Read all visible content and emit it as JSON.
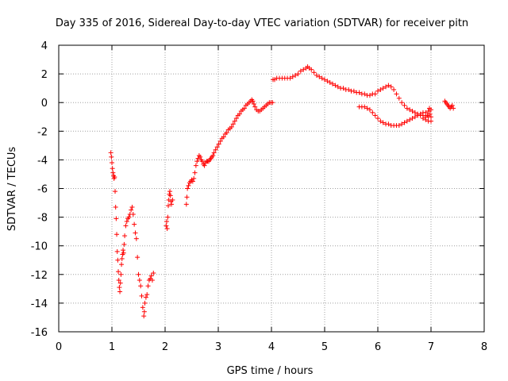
{
  "chart_data": {
    "type": "scatter",
    "title": "Day 335 of 2016, Sidereal Day-to-day VTEC variation (SDTVAR) for receiver pitn",
    "xlabel": "GPS time / hours",
    "ylabel": "SDTVAR / TECUs",
    "xlim": [
      0,
      8
    ],
    "ylim": [
      -16,
      4
    ],
    "xticks": [
      0,
      1,
      2,
      3,
      4,
      5,
      6,
      7,
      8
    ],
    "yticks": [
      -16,
      -14,
      -12,
      -10,
      -8,
      -6,
      -4,
      -2,
      0,
      2,
      4
    ],
    "grid": true,
    "marker": "+",
    "series": [
      {
        "name": "SDTVAR",
        "color": "#ff0000",
        "points": [
          [
            0.98,
            -3.5
          ],
          [
            0.99,
            -3.8
          ],
          [
            1.0,
            -4.2
          ],
          [
            1.01,
            -4.6
          ],
          [
            1.02,
            -4.9
          ],
          [
            1.03,
            -5.1
          ],
          [
            1.04,
            -5.3
          ],
          [
            1.05,
            -5.2
          ],
          [
            1.06,
            -6.2
          ],
          [
            1.07,
            -7.3
          ],
          [
            1.08,
            -8.1
          ],
          [
            1.09,
            -9.2
          ],
          [
            1.1,
            -10.4
          ],
          [
            1.11,
            -11.0
          ],
          [
            1.12,
            -11.8
          ],
          [
            1.13,
            -12.4
          ],
          [
            1.14,
            -12.9
          ],
          [
            1.15,
            -13.2
          ],
          [
            1.16,
            -12.6
          ],
          [
            1.17,
            -12.0
          ],
          [
            1.18,
            -11.3
          ],
          [
            1.19,
            -10.9
          ],
          [
            1.2,
            -10.6
          ],
          [
            1.21,
            -10.3
          ],
          [
            1.22,
            -10.5
          ],
          [
            1.23,
            -9.9
          ],
          [
            1.24,
            -9.3
          ],
          [
            1.26,
            -8.6
          ],
          [
            1.28,
            -8.3
          ],
          [
            1.3,
            -8.1
          ],
          [
            1.32,
            -8.0
          ],
          [
            1.34,
            -7.8
          ],
          [
            1.36,
            -7.5
          ],
          [
            1.38,
            -7.3
          ],
          [
            1.4,
            -7.8
          ],
          [
            1.42,
            -8.5
          ],
          [
            1.44,
            -9.1
          ],
          [
            1.46,
            -9.5
          ],
          [
            1.48,
            -10.8
          ],
          [
            1.5,
            -12.0
          ],
          [
            1.52,
            -12.4
          ],
          [
            1.54,
            -12.8
          ],
          [
            1.56,
            -13.5
          ],
          [
            1.58,
            -14.3
          ],
          [
            1.6,
            -14.9
          ],
          [
            1.61,
            -14.6
          ],
          [
            1.62,
            -14.0
          ],
          [
            1.64,
            -13.6
          ],
          [
            1.66,
            -13.4
          ],
          [
            1.68,
            -12.8
          ],
          [
            1.7,
            -12.4
          ],
          [
            1.72,
            -12.3
          ],
          [
            1.74,
            -12.1
          ],
          [
            1.76,
            -12.4
          ],
          [
            1.78,
            -11.9
          ],
          [
            2.02,
            -8.6
          ],
          [
            2.03,
            -8.3
          ],
          [
            2.04,
            -8.8
          ],
          [
            2.05,
            -8.0
          ],
          [
            2.06,
            -7.2
          ],
          [
            2.07,
            -6.8
          ],
          [
            2.08,
            -6.4
          ],
          [
            2.09,
            -6.2
          ],
          [
            2.1,
            -6.5
          ],
          [
            2.11,
            -6.9
          ],
          [
            2.12,
            -7.1
          ],
          [
            2.14,
            -6.8
          ],
          [
            2.4,
            -7.1
          ],
          [
            2.41,
            -6.6
          ],
          [
            2.42,
            -6.0
          ],
          [
            2.44,
            -5.8
          ],
          [
            2.46,
            -5.6
          ],
          [
            2.48,
            -5.5
          ],
          [
            2.5,
            -5.4
          ],
          [
            2.52,
            -5.5
          ],
          [
            2.54,
            -5.3
          ],
          [
            2.56,
            -4.9
          ],
          [
            2.58,
            -4.4
          ],
          [
            2.6,
            -4.1
          ],
          [
            2.62,
            -3.9
          ],
          [
            2.64,
            -3.7
          ],
          [
            2.66,
            -3.8
          ],
          [
            2.68,
            -4.0
          ],
          [
            2.7,
            -4.1
          ],
          [
            2.72,
            -4.3
          ],
          [
            2.74,
            -4.4
          ],
          [
            2.76,
            -4.2
          ],
          [
            2.78,
            -4.1
          ],
          [
            2.8,
            -4.1
          ],
          [
            2.82,
            -4.1
          ],
          [
            2.84,
            -4.0
          ],
          [
            2.86,
            -3.9
          ],
          [
            2.88,
            -3.8
          ],
          [
            2.9,
            -3.7
          ],
          [
            2.92,
            -3.5
          ],
          [
            2.95,
            -3.3
          ],
          [
            2.98,
            -3.1
          ],
          [
            3.01,
            -2.9
          ],
          [
            3.04,
            -2.7
          ],
          [
            3.07,
            -2.5
          ],
          [
            3.1,
            -2.4
          ],
          [
            3.13,
            -2.2
          ],
          [
            3.16,
            -2.1
          ],
          [
            3.19,
            -1.9
          ],
          [
            3.22,
            -1.8
          ],
          [
            3.25,
            -1.7
          ],
          [
            3.28,
            -1.5
          ],
          [
            3.31,
            -1.3
          ],
          [
            3.34,
            -1.1
          ],
          [
            3.37,
            -0.9
          ],
          [
            3.4,
            -0.8
          ],
          [
            3.43,
            -0.6
          ],
          [
            3.46,
            -0.5
          ],
          [
            3.49,
            -0.4
          ],
          [
            3.52,
            -0.2
          ],
          [
            3.55,
            -0.1
          ],
          [
            3.58,
            0.0
          ],
          [
            3.61,
            0.1
          ],
          [
            3.63,
            0.2
          ],
          [
            3.65,
            0.1
          ],
          [
            3.67,
            -0.1
          ],
          [
            3.69,
            -0.3
          ],
          [
            3.72,
            -0.5
          ],
          [
            3.75,
            -0.6
          ],
          [
            3.78,
            -0.6
          ],
          [
            3.81,
            -0.5
          ],
          [
            3.84,
            -0.4
          ],
          [
            3.87,
            -0.3
          ],
          [
            3.9,
            -0.2
          ],
          [
            3.93,
            -0.1
          ],
          [
            3.96,
            0.0
          ],
          [
            3.99,
            0.0
          ],
          [
            4.02,
            0.0
          ],
          [
            4.03,
            1.6
          ],
          [
            4.06,
            1.6
          ],
          [
            4.1,
            1.7
          ],
          [
            4.15,
            1.7
          ],
          [
            4.2,
            1.7
          ],
          [
            4.25,
            1.7
          ],
          [
            4.3,
            1.7
          ],
          [
            4.35,
            1.7
          ],
          [
            4.4,
            1.8
          ],
          [
            4.45,
            1.9
          ],
          [
            4.5,
            2.0
          ],
          [
            4.55,
            2.2
          ],
          [
            4.6,
            2.3
          ],
          [
            4.65,
            2.4
          ],
          [
            4.68,
            2.5
          ],
          [
            4.71,
            2.4
          ],
          [
            4.75,
            2.3
          ],
          [
            4.8,
            2.1
          ],
          [
            4.85,
            1.9
          ],
          [
            4.9,
            1.8
          ],
          [
            4.95,
            1.7
          ],
          [
            5.0,
            1.6
          ],
          [
            5.05,
            1.5
          ],
          [
            5.1,
            1.4
          ],
          [
            5.15,
            1.3
          ],
          [
            5.2,
            1.2
          ],
          [
            5.25,
            1.1
          ],
          [
            5.3,
            1.0
          ],
          [
            5.35,
            1.0
          ],
          [
            5.4,
            0.9
          ],
          [
            5.45,
            0.9
          ],
          [
            5.5,
            0.8
          ],
          [
            5.55,
            0.8
          ],
          [
            5.6,
            0.7
          ],
          [
            5.65,
            0.7
          ],
          [
            5.7,
            0.6
          ],
          [
            5.75,
            0.6
          ],
          [
            5.8,
            0.5
          ],
          [
            5.85,
            0.5
          ],
          [
            5.9,
            0.6
          ],
          [
            5.95,
            0.6
          ],
          [
            6.0,
            0.8
          ],
          [
            6.05,
            0.9
          ],
          [
            6.1,
            1.0
          ],
          [
            6.15,
            1.1
          ],
          [
            6.2,
            1.2
          ],
          [
            6.25,
            1.1
          ],
          [
            6.3,
            0.9
          ],
          [
            6.35,
            0.6
          ],
          [
            6.4,
            0.3
          ],
          [
            6.45,
            0.0
          ],
          [
            6.5,
            -0.2
          ],
          [
            6.55,
            -0.4
          ],
          [
            6.6,
            -0.5
          ],
          [
            6.65,
            -0.6
          ],
          [
            6.7,
            -0.7
          ],
          [
            6.75,
            -0.8
          ],
          [
            6.8,
            -0.9
          ],
          [
            6.85,
            -0.9
          ],
          [
            6.9,
            -1.0
          ],
          [
            6.95,
            -1.0
          ],
          [
            7.0,
            -1.0
          ],
          [
            5.65,
            -0.3
          ],
          [
            5.7,
            -0.3
          ],
          [
            5.75,
            -0.3
          ],
          [
            5.8,
            -0.4
          ],
          [
            5.85,
            -0.5
          ],
          [
            5.9,
            -0.7
          ],
          [
            5.95,
            -0.9
          ],
          [
            6.0,
            -1.1
          ],
          [
            6.05,
            -1.3
          ],
          [
            6.1,
            -1.4
          ],
          [
            6.15,
            -1.5
          ],
          [
            6.2,
            -1.5
          ],
          [
            6.25,
            -1.6
          ],
          [
            6.3,
            -1.6
          ],
          [
            6.35,
            -1.6
          ],
          [
            6.4,
            -1.6
          ],
          [
            6.45,
            -1.5
          ],
          [
            6.5,
            -1.4
          ],
          [
            6.55,
            -1.3
          ],
          [
            6.6,
            -1.2
          ],
          [
            6.65,
            -1.1
          ],
          [
            6.7,
            -1.0
          ],
          [
            6.75,
            -0.9
          ],
          [
            6.8,
            -0.8
          ],
          [
            6.85,
            -0.7
          ],
          [
            6.9,
            -0.7
          ],
          [
            6.95,
            -0.6
          ],
          [
            7.0,
            -0.5
          ],
          [
            6.85,
            -1.1
          ],
          [
            6.9,
            -1.2
          ],
          [
            6.95,
            -1.3
          ],
          [
            7.0,
            -1.3
          ],
          [
            6.97,
            -0.4
          ],
          [
            6.93,
            -0.9
          ],
          [
            6.98,
            -0.8
          ],
          [
            7.26,
            0.1
          ],
          [
            7.28,
            0.0
          ],
          [
            7.3,
            -0.1
          ],
          [
            7.32,
            -0.2
          ],
          [
            7.34,
            -0.3
          ],
          [
            7.36,
            -0.4
          ],
          [
            7.38,
            -0.3
          ],
          [
            7.4,
            -0.2
          ],
          [
            7.42,
            -0.4
          ]
        ]
      }
    ]
  }
}
